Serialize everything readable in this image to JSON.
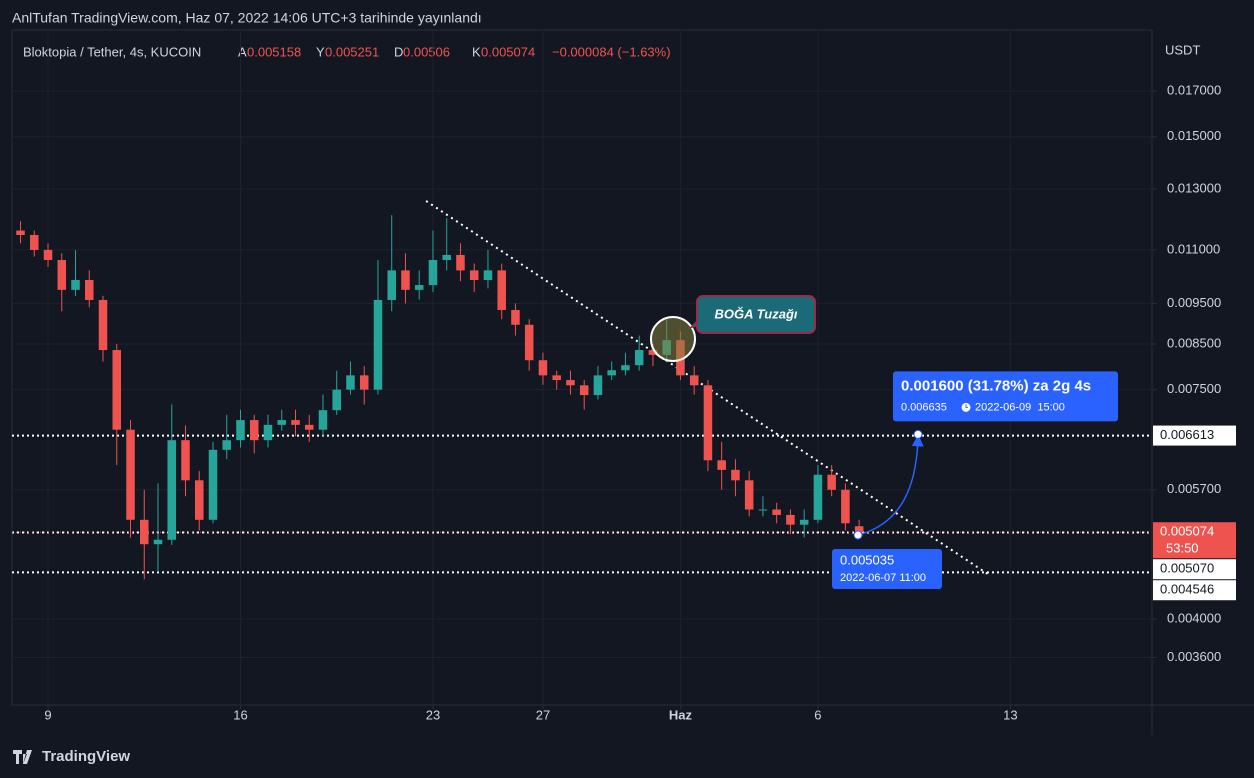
{
  "chart_data": {
    "type": "candlestick",
    "publisher": "AnlTufan TradingView.com, Haz 07, 2022 14:06 UTC+3 tarihinde yayınlandı",
    "title": "Bloktopia / Tether, 4s, KUCOIN",
    "ohlc_labels": [
      "A",
      "Y",
      "D",
      "K"
    ],
    "change": "−0.000084 (−1.63%)",
    "currency": "USDT",
    "x": [
      8,
      8.5,
      9,
      9.5,
      10,
      10.5,
      11,
      11.5,
      12,
      12.5,
      13,
      13.5,
      14,
      14.5,
      15,
      15.5,
      16,
      16.5,
      17,
      17.5,
      18,
      18.5,
      19,
      19.5,
      20,
      20.5,
      21,
      21.5,
      22,
      22.5,
      23,
      23.5,
      24,
      24.5,
      25,
      25.5,
      26,
      26.5,
      27,
      27.5,
      28,
      28.5,
      29,
      29.5,
      30,
      30.5,
      31,
      31.5,
      32,
      32.5,
      33,
      33.5,
      34,
      34.5,
      35,
      35.5,
      36,
      36.5,
      37,
      37.5,
      38,
      38.5
    ],
    "open": [
      0.0116,
      0.01146,
      0.011,
      0.0107,
      0.00986,
      0.01013,
      0.00959,
      0.00836,
      0.00672,
      0.00525,
      0.00491,
      0.00497,
      0.00653,
      0.00585,
      0.00525,
      0.00636,
      0.00653,
      0.0069,
      0.00653,
      0.00681,
      0.0069,
      0.00681,
      0.00672,
      0.00709,
      0.0075,
      0.0078,
      0.0075,
      0.00959,
      0.0104,
      0.00986,
      0.00999,
      0.0107,
      0.01085,
      0.0104,
      0.01013,
      0.0104,
      0.00933,
      0.00896,
      0.00813,
      0.0078,
      0.0077,
      0.00759,
      0.00739,
      0.0078,
      0.00791,
      0.00802,
      0.00836,
      0.00825,
      0.00859,
      0.0078,
      0.00759,
      0.00618,
      0.00602,
      0.00585,
      0.0054,
      0.0054,
      0.00532,
      0.00518,
      0.00525,
      0.00594,
      0.0057,
      0.005158
    ],
    "high": [
      0.0119,
      0.0116,
      0.0112,
      0.0109,
      0.011,
      0.0104,
      0.0097,
      0.0085,
      0.0069,
      0.0057,
      0.0058,
      0.0072,
      0.0068,
      0.006,
      0.0065,
      0.007,
      0.0071,
      0.007,
      0.007,
      0.0071,
      0.0071,
      0.007,
      0.0074,
      0.0079,
      0.0081,
      0.008,
      0.0107,
      0.0121,
      0.0109,
      0.0104,
      0.0116,
      0.012,
      0.0112,
      0.0106,
      0.011,
      0.0106,
      0.0095,
      0.0091,
      0.0083,
      0.0079,
      0.0079,
      0.0077,
      0.008,
      0.0081,
      0.0083,
      0.0087,
      0.0085,
      0.0091,
      0.0088,
      0.008,
      0.0077,
      0.0065,
      0.0062,
      0.006,
      0.0056,
      0.0055,
      0.0054,
      0.0054,
      0.0061,
      0.0061,
      0.0058,
      0.005251
    ],
    "low": [
      0.0112,
      0.0108,
      0.0105,
      0.0093,
      0.0097,
      0.0094,
      0.0081,
      0.0061,
      0.005,
      0.00446,
      0.00455,
      0.0049,
      0.0056,
      0.0051,
      0.0052,
      0.0062,
      0.0064,
      0.0063,
      0.0064,
      0.0067,
      0.0066,
      0.0065,
      0.0066,
      0.007,
      0.0074,
      0.0072,
      0.0074,
      0.0093,
      0.0095,
      0.0096,
      0.0098,
      0.0104,
      0.0101,
      0.0098,
      0.0099,
      0.0091,
      0.0087,
      0.0079,
      0.0076,
      0.0075,
      0.0074,
      0.0071,
      0.0073,
      0.0077,
      0.0078,
      0.0079,
      0.008,
      0.0081,
      0.0077,
      0.0074,
      0.006,
      0.0057,
      0.0056,
      0.0053,
      0.0053,
      0.0052,
      0.00505,
      0.005,
      0.0052,
      0.0056,
      0.0051,
      0.00506
    ],
    "close": [
      0.01146,
      0.011,
      0.0107,
      0.00986,
      0.01013,
      0.00959,
      0.00836,
      0.00672,
      0.00525,
      0.00491,
      0.00497,
      0.00653,
      0.00585,
      0.00525,
      0.00636,
      0.00653,
      0.0069,
      0.00653,
      0.00681,
      0.0069,
      0.00681,
      0.00672,
      0.00709,
      0.0075,
      0.0078,
      0.0075,
      0.00959,
      0.0104,
      0.00986,
      0.00999,
      0.0107,
      0.01085,
      0.0104,
      0.01013,
      0.0104,
      0.00933,
      0.00896,
      0.00813,
      0.0078,
      0.0077,
      0.00759,
      0.00739,
      0.0078,
      0.00791,
      0.00802,
      0.00836,
      0.00825,
      0.00859,
      0.0078,
      0.00759,
      0.00618,
      0.00602,
      0.00585,
      0.0054,
      0.0054,
      0.00532,
      0.00518,
      0.00525,
      0.00594,
      0.0057,
      0.0052,
      0.005074
    ],
    "up_color": "#26a69a",
    "down_color": "#ef5350",
    "xlim": [
      7.69,
      49.15
    ],
    "xticks": [
      9,
      16,
      23,
      27,
      {
        "value": 32,
        "label": "Haz"
      },
      {
        "value": 37,
        "label": "6"
      },
      {
        "value": 44,
        "label": "13"
      }
    ],
    "ylim": [
      0.00316,
      0.0201
    ],
    "log_scale": true,
    "yticks": [
      {
        "value": 0.017,
        "label": "0.017000"
      },
      {
        "value": 0.015,
        "label": "0.015000"
      },
      {
        "value": 0.013,
        "label": "0.013000"
      },
      {
        "value": 0.011,
        "label": "0.011000"
      },
      {
        "value": 0.0095,
        "label": "0.009500"
      },
      {
        "value": 0.0085,
        "label": "0.008500"
      },
      {
        "value": 0.0075,
        "label": "0.007500"
      },
      {
        "value": 0.0057,
        "label": "0.005700"
      },
      {
        "value": 0.004,
        "label": "0.004000"
      },
      {
        "value": 0.0036,
        "label": "0.003600"
      }
    ],
    "grid": true,
    "levels": [
      0.006613,
      {
        "value": 0.00507,
        "label": "0.005070"
      },
      0.004546
    ],
    "last_price": {
      "value": 0.005074,
      "countdown": "53:50"
    },
    "trendline": {
      "x": [
        22.75,
        43.2
      ],
      "y": [
        0.01258,
        0.00452
      ]
    },
    "annotation": "BOĞA Tuzağı",
    "measure": {
      "start_price": 0.005035,
      "start_time": "2022-06-07 11:00",
      "end_price": 0.006635,
      "end_time": "2022-06-09  15:00",
      "change": "0.001600 (31.78%) za 2g 4s"
    },
    "footer": "TradingView"
  }
}
